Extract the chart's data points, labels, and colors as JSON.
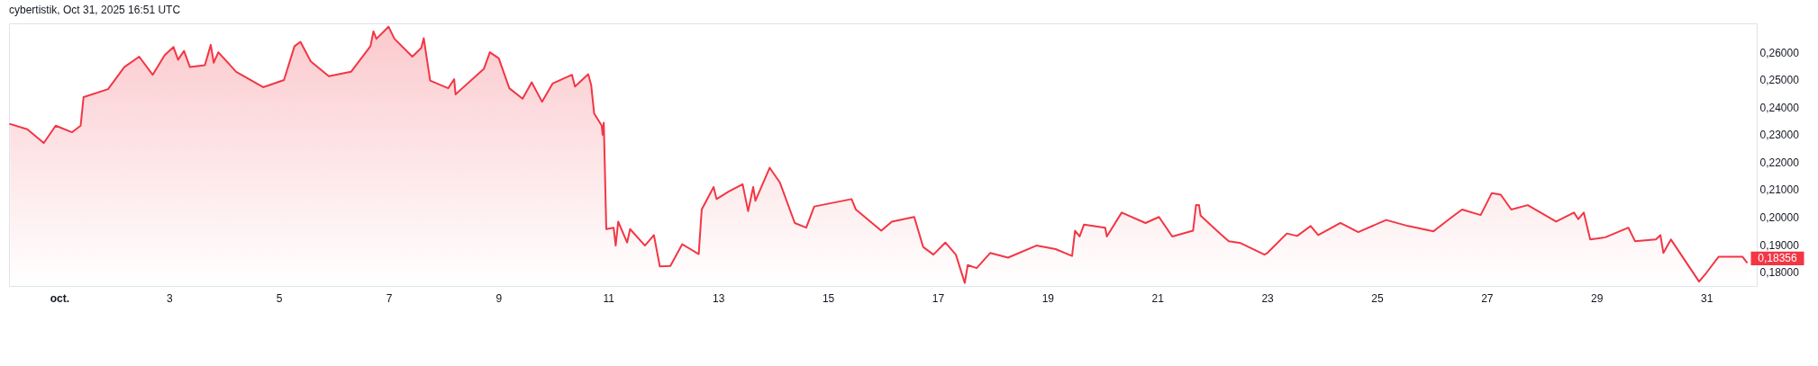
{
  "chart_data": {
    "type": "area",
    "title": "cybertistik, Oct 31, 2025 16:51 UTC",
    "x": [
      "2025-09-30T02:30",
      "2025-09-30T10:00",
      "2025-09-30T17:12",
      "2025-09-30T22:24",
      "2025-10-01T05:36",
      "2025-10-01T09:18",
      "2025-10-01T10:36",
      "2025-10-01T21:18",
      "2025-10-02T04:24",
      "2025-10-02T10:54",
      "2025-10-02T16:48",
      "2025-10-02T22:00",
      "2025-10-03T01:54",
      "2025-10-03T03:54",
      "2025-10-03T06:30",
      "2025-10-03T09:06",
      "2025-10-03T15:36",
      "2025-10-03T18:12",
      "2025-10-03T19:30",
      "2025-10-03T21:30",
      "2025-10-04T05:18",
      "2025-10-04T17:06",
      "2025-10-05T02:12",
      "2025-10-05T06:48",
      "2025-10-05T09:24",
      "2025-10-05T13:54",
      "2025-10-05T21:48",
      "2025-10-06T07:30",
      "2025-10-06T16:00",
      "2025-10-06T17:18",
      "2025-10-06T18:36",
      "2025-10-06T23:54",
      "2025-10-07T02:30",
      "2025-10-07T10:18",
      "2025-10-07T14:12",
      "2025-10-07T15:18",
      "2025-10-07T18:06",
      "2025-10-08T02:00",
      "2025-10-08T04:36",
      "2025-10-08T05:12",
      "2025-10-08T17:36",
      "2025-10-08T20:12",
      "2025-10-09T00:06",
      "2025-10-09T04:42",
      "2025-10-09T10:30",
      "2025-10-09T14:30",
      "2025-10-09T19:00",
      "2025-10-09T23:36",
      "2025-10-10T08:06",
      "2025-10-10T09:24",
      "2025-10-10T15:12",
      "2025-10-10T16:30",
      "2025-10-10T17:48",
      "2025-10-10T21:06",
      "2025-10-10T21:30",
      "2025-10-10T22:00",
      "2025-10-10T23:06",
      "2025-10-11T02:18",
      "2025-10-11T03:12",
      "2025-10-11T04:18",
      "2025-10-11T08:12",
      "2025-10-11T09:30",
      "2025-10-11T16:00",
      "2025-10-11T19:54",
      "2025-10-11T22:30",
      "2025-10-12T03:06",
      "2025-10-12T08:18",
      "2025-10-12T15:30",
      "2025-10-12T16:48",
      "2025-10-12T22:00",
      "2025-10-12T23:18",
      "2025-10-13T04:30",
      "2025-10-13T10:42",
      "2025-10-13T13:06",
      "2025-10-13T15:18",
      "2025-10-13T16:18",
      "2025-10-13T22:30",
      "2025-10-14T03:00",
      "2025-10-14T09:30",
      "2025-10-14T14:30",
      "2025-10-14T18:00",
      "2025-10-15T10:18",
      "2025-10-15T12:12",
      "2025-10-15T23:18",
      "2025-10-16T03:54",
      "2025-10-16T13:42",
      "2025-10-16T17:36",
      "2025-10-16T22:06",
      "2025-10-17T03:18",
      "2025-10-17T07:54",
      "2025-10-17T11:48",
      "2025-10-17T13:06",
      "2025-10-17T17:00",
      "2025-10-17T22:54",
      "2025-10-18T06:42",
      "2025-10-18T19:06",
      "2025-10-19T03:30",
      "2025-10-19T10:42",
      "2025-10-19T12:00",
      "2025-10-19T14:00",
      "2025-10-19T15:54",
      "2025-10-20T01:12",
      "2025-10-20T01:54",
      "2025-10-20T08:24",
      "2025-10-20T18:48",
      "2025-10-21T00:42",
      "2025-10-21T06:30",
      "2025-10-21T15:36",
      "2025-10-21T16:54",
      "2025-10-21T18:12",
      "2025-10-21T18:54",
      "2025-10-22T03:18",
      "2025-10-22T07:12",
      "2025-10-22T12:24",
      "2025-10-22T22:48",
      "2025-10-23T00:06",
      "2025-10-23T08:36",
      "2025-10-23T13:06",
      "2025-10-23T19:00",
      "2025-10-23T22:18",
      "2025-10-24T08:00",
      "2025-10-24T15:48",
      "2025-10-25T04:00",
      "2025-10-25T13:36",
      "2025-10-26T00:42",
      "2025-10-26T08:48",
      "2025-10-26T13:12",
      "2025-10-26T21:18",
      "2025-10-27T02:12",
      "2025-10-27T06:06",
      "2025-10-27T10:42",
      "2025-10-27T17:54",
      "2025-10-28T06:18",
      "2025-10-28T14:06",
      "2025-10-28T16:00",
      "2025-10-28T18:24",
      "2025-10-28T21:12",
      "2025-10-29T03:48",
      "2025-10-29T13:54",
      "2025-10-29T16:48",
      "2025-10-30T01:54",
      "2025-10-30T03:54",
      "2025-10-30T05:12",
      "2025-10-30T08:30",
      "2025-10-30T20:48",
      "2025-10-31T00:06",
      "2025-10-31T05:18",
      "2025-10-31T15:48",
      "2025-10-31T17:42"
    ],
    "series": [
      {
        "color": "#f23645",
        "values": [
          0.2339,
          0.232,
          0.227,
          0.2333,
          0.2309,
          0.2333,
          0.2437,
          0.2466,
          0.2546,
          0.2584,
          0.2518,
          0.2589,
          0.2619,
          0.2573,
          0.2605,
          0.2546,
          0.2553,
          0.2627,
          0.2562,
          0.26,
          0.2529,
          0.2473,
          0.2499,
          0.2622,
          0.2638,
          0.2567,
          0.2513,
          0.2529,
          0.2622,
          0.2676,
          0.2649,
          0.2693,
          0.2649,
          0.2584,
          0.2616,
          0.2651,
          0.2497,
          0.2469,
          0.2502,
          0.2447,
          0.254,
          0.26,
          0.2578,
          0.2469,
          0.2431,
          0.2491,
          0.242,
          0.2486,
          0.2518,
          0.2475,
          0.252,
          0.248,
          0.2377,
          0.2333,
          0.23,
          0.2344,
          0.1957,
          0.1962,
          0.1897,
          0.1984,
          0.1908,
          0.1957,
          0.1897,
          0.1935,
          0.1821,
          0.1823,
          0.1902,
          0.1866,
          0.2028,
          0.211,
          0.2066,
          0.2093,
          0.212,
          0.2022,
          0.211,
          0.206,
          0.218,
          0.2126,
          0.1979,
          0.1962,
          0.2039,
          0.2066,
          0.2028,
          0.1951,
          0.1984,
          0.2001,
          0.1892,
          0.1864,
          0.1908,
          0.1864,
          0.1761,
          0.1826,
          0.1815,
          0.187,
          0.1853,
          0.1897,
          0.1884,
          0.1859,
          0.1951,
          0.193,
          0.1973,
          0.1962,
          0.193,
          0.2017,
          0.1979,
          0.2001,
          0.193,
          0.1951,
          0.2044,
          0.2044,
          0.2006,
          0.1941,
          0.1913,
          0.1906,
          0.1864,
          0.187,
          0.1941,
          0.1932,
          0.1968,
          0.1935,
          0.1979,
          0.1946,
          0.199,
          0.1968,
          0.1949,
          0.2001,
          0.2028,
          0.2008,
          0.2088,
          0.2082,
          0.2028,
          0.2044,
          0.1984,
          0.2017,
          0.1993,
          0.2017,
          0.1919,
          0.1927,
          0.1962,
          0.1913,
          0.1919,
          0.1935,
          0.187,
          0.1919,
          0.1766,
          0.1799,
          0.1856,
          0.1856,
          0.18356
        ],
        "value_labels": [
          null,
          null,
          null,
          null,
          null,
          null,
          null,
          null,
          null,
          null,
          null,
          null,
          null,
          null,
          null,
          null,
          null,
          null,
          null,
          null,
          null,
          null,
          null,
          null,
          null,
          null,
          null,
          null,
          null,
          null,
          null,
          null,
          null,
          null,
          null,
          null,
          null,
          null,
          null,
          null,
          null,
          null,
          null,
          null,
          null,
          null,
          null,
          null,
          null,
          null,
          null,
          null,
          null,
          null,
          null,
          null,
          null,
          null,
          null,
          null,
          null,
          null,
          null,
          null,
          null,
          null,
          null,
          null,
          null,
          null,
          null,
          null,
          null,
          null,
          null,
          null,
          null,
          null,
          null,
          null,
          null,
          null,
          null,
          null,
          null,
          null,
          null,
          null,
          null,
          null,
          null,
          null,
          null,
          null,
          null,
          null,
          null,
          null,
          null,
          null,
          null,
          null,
          null,
          null,
          null,
          null,
          null,
          null,
          null,
          null,
          null,
          null,
          null,
          null,
          null,
          null,
          null,
          null,
          null,
          null,
          null,
          null,
          null,
          null,
          null,
          null,
          null,
          null,
          null,
          null,
          null,
          null,
          null,
          null,
          null,
          null,
          null,
          null,
          null,
          null,
          null,
          null,
          null,
          null,
          null,
          null,
          null,
          null,
          "0,18356"
        ]
      }
    ],
    "xlim": [
      "2025-09-30T02:00",
      "2025-10-31T22:00"
    ],
    "xticks": [
      {
        "value": "2025-10-01",
        "label": "oct."
      },
      {
        "value": "2025-10-03",
        "label": "3"
      },
      {
        "value": "2025-10-05",
        "label": "5"
      },
      {
        "value": "2025-10-07",
        "label": "7"
      },
      {
        "value": "2025-10-09",
        "label": "9"
      },
      {
        "value": "2025-10-11",
        "label": "11"
      },
      {
        "value": "2025-10-13",
        "label": "13"
      },
      {
        "value": "2025-10-15",
        "label": "15"
      },
      {
        "value": "2025-10-17",
        "label": "17"
      },
      {
        "value": "2025-10-19",
        "label": "19"
      },
      {
        "value": "2025-10-21",
        "label": "21"
      },
      {
        "value": "2025-10-23",
        "label": "23"
      },
      {
        "value": "2025-10-25",
        "label": "25"
      },
      {
        "value": "2025-10-27",
        "label": "27"
      },
      {
        "value": "2025-10-29",
        "label": "29"
      },
      {
        "value": "2025-10-31",
        "label": "31"
      }
    ],
    "ylim": [
      0.175,
      0.2705
    ],
    "yticks": [
      {
        "value": 0.18,
        "label": "0,18000"
      },
      {
        "value": 0.19,
        "label": "0,19000"
      },
      {
        "value": 0.2,
        "label": "0,20000"
      },
      {
        "value": 0.21,
        "label": "0,21000"
      },
      {
        "value": 0.22,
        "label": "0,22000"
      },
      {
        "value": 0.23,
        "label": "0,23000"
      },
      {
        "value": 0.24,
        "label": "0,24000"
      },
      {
        "value": 0.25,
        "label": "0,25000"
      },
      {
        "value": 0.26,
        "label": "0,26000"
      }
    ]
  }
}
